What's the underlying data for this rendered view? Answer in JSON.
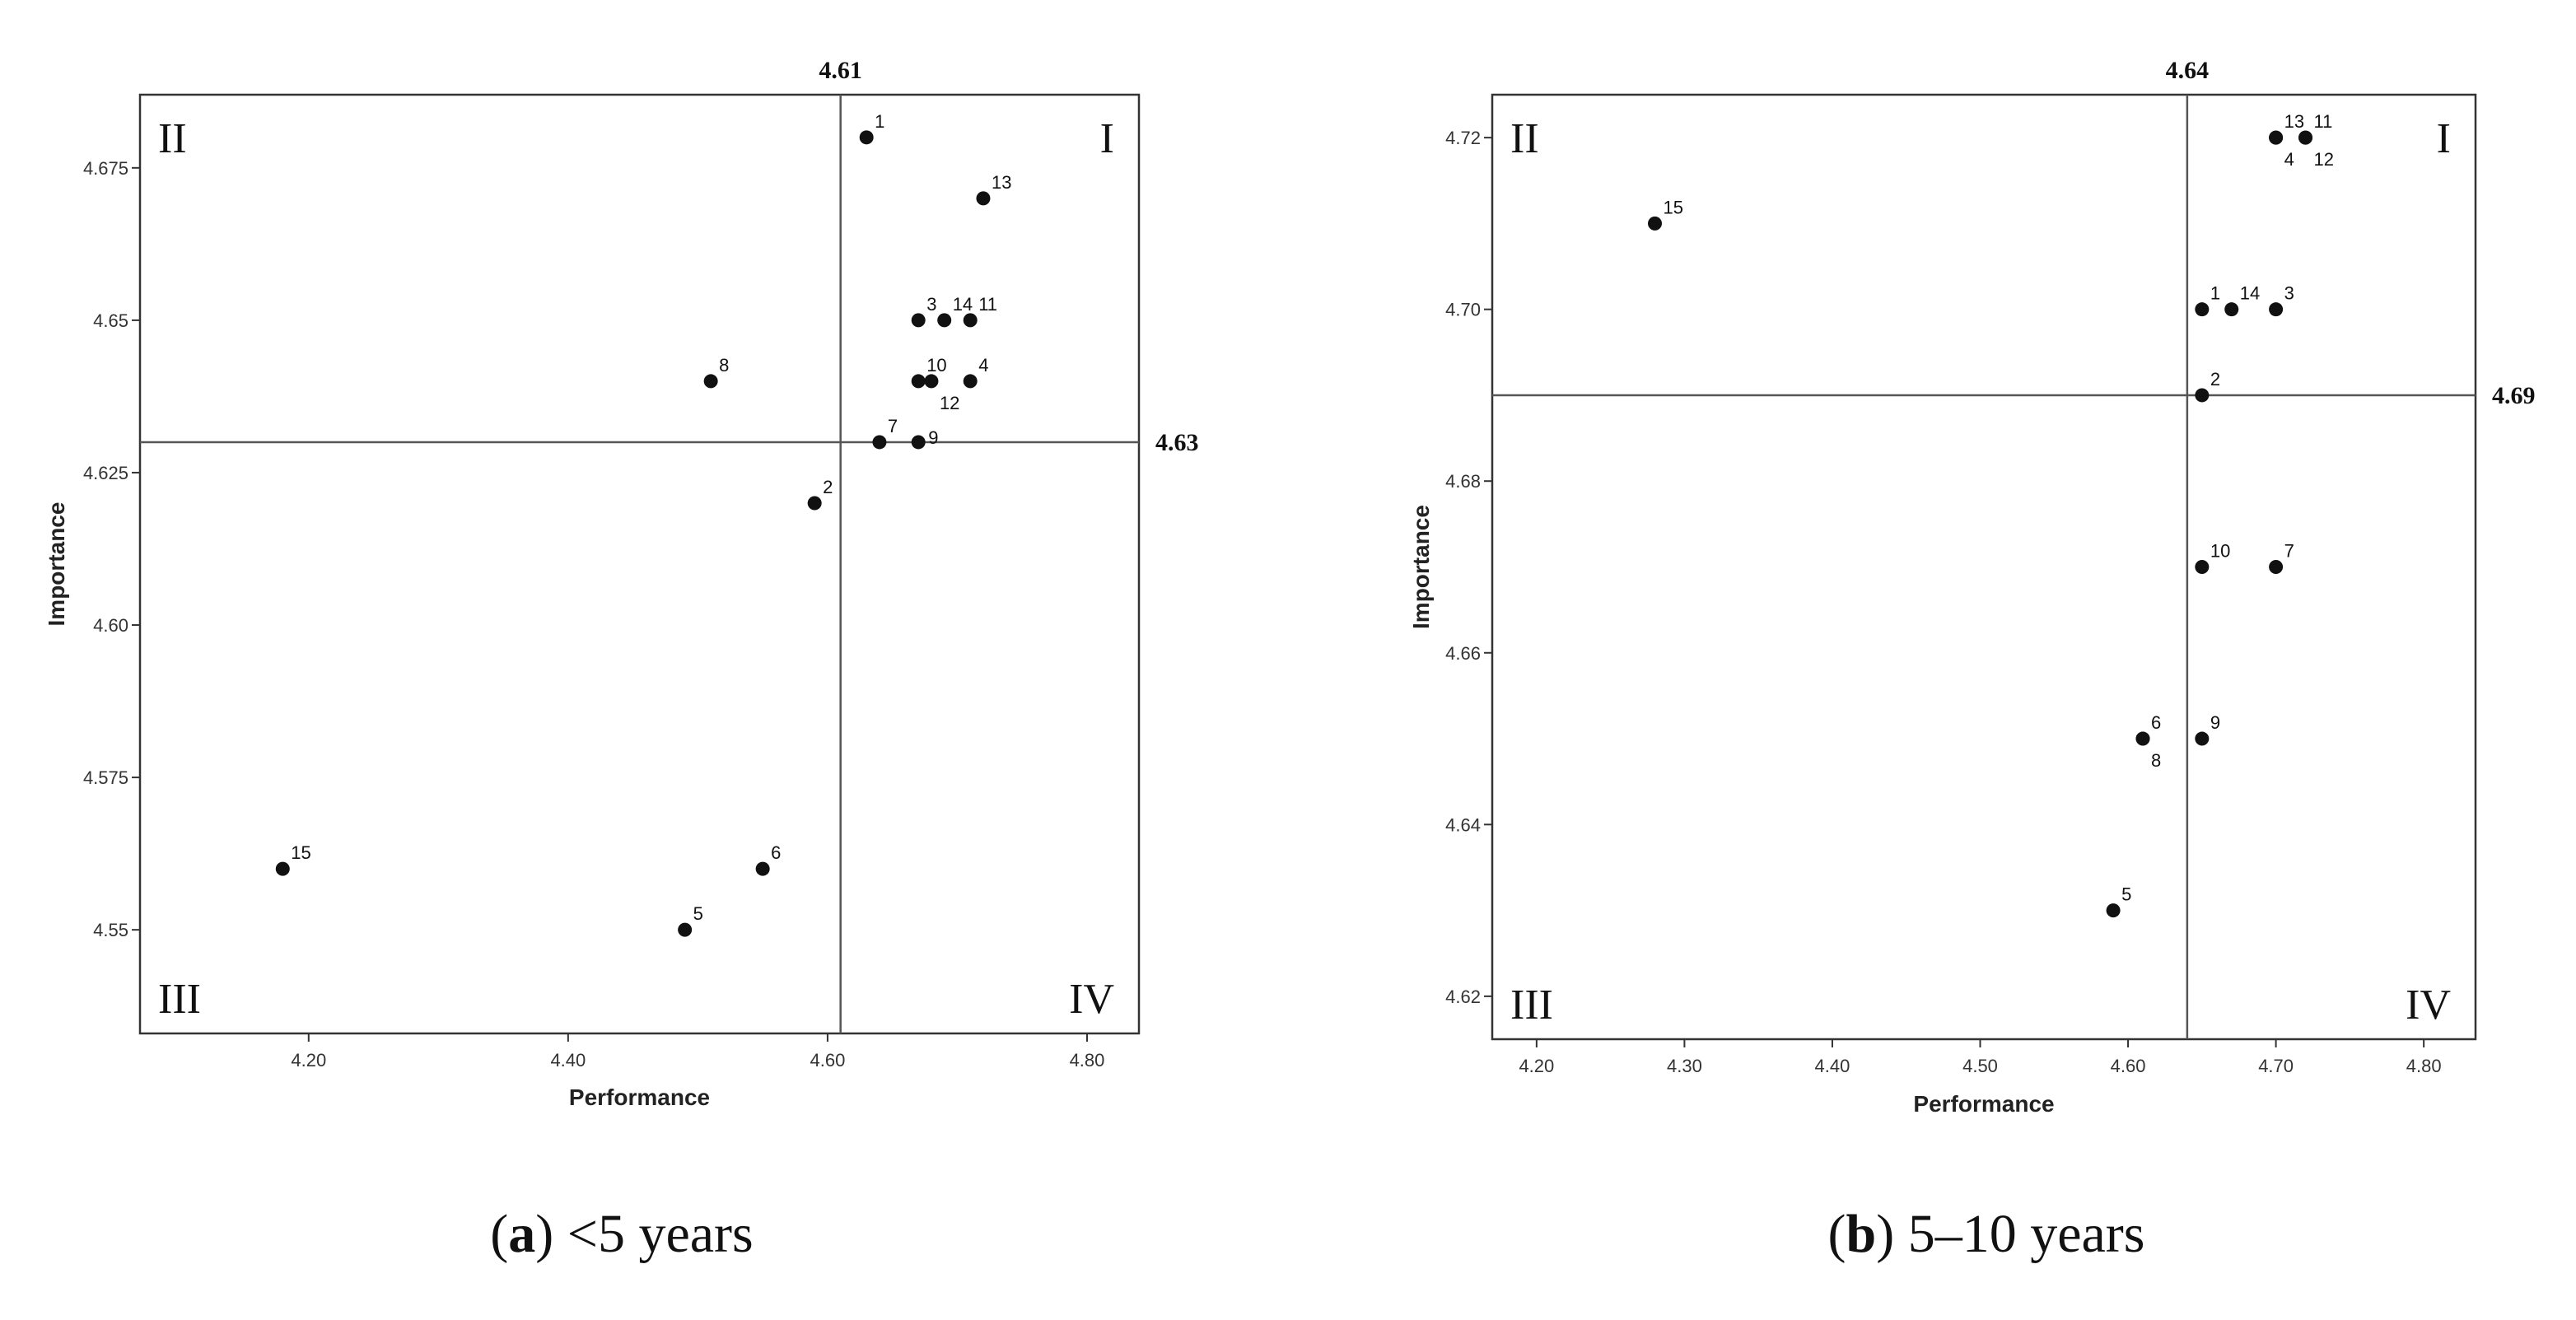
{
  "chart_data": [
    {
      "type": "scatter",
      "caption_letter": "a",
      "caption_text": "<5 years",
      "xlabel": "Performance",
      "ylabel": "Importance",
      "xlim": [
        4.07,
        4.84
      ],
      "ylim": [
        4.533,
        4.687
      ],
      "x_ticks": [
        4.2,
        4.4,
        4.6,
        4.8
      ],
      "x_tick_labels": [
        "4.20",
        "4.40",
        "4.60",
        "4.80"
      ],
      "y_ticks": [
        4.55,
        4.575,
        4.6,
        4.625,
        4.65,
        4.675
      ],
      "y_tick_labels": [
        "4.55",
        "4.575",
        "4.60",
        "4.625",
        "4.65",
        "4.675"
      ],
      "x_mean": 4.61,
      "x_mean_label": "4.61",
      "y_mean": 4.63,
      "y_mean_label": "4.63",
      "quadrant_labels": {
        "top_left": "II",
        "top_right": "I",
        "bottom_left": "III",
        "bottom_right": "IV"
      },
      "points": [
        {
          "label": "1",
          "x": 4.63,
          "y": 4.68,
          "label_pos": "ur"
        },
        {
          "label": "13",
          "x": 4.72,
          "y": 4.67,
          "label_pos": "ur"
        },
        {
          "label": "3",
          "x": 4.67,
          "y": 4.65,
          "label_pos": "ur"
        },
        {
          "label": "14",
          "x": 4.69,
          "y": 4.65,
          "label_pos": "ur"
        },
        {
          "label": "11",
          "x": 4.71,
          "y": 4.65,
          "label_pos": "ur"
        },
        {
          "label": "10",
          "x": 4.67,
          "y": 4.64,
          "label_pos": "ur"
        },
        {
          "label": "12",
          "x": 4.68,
          "y": 4.64,
          "label_pos": "br"
        },
        {
          "label": "4",
          "x": 4.71,
          "y": 4.64,
          "label_pos": "ur"
        },
        {
          "label": "8",
          "x": 4.51,
          "y": 4.64,
          "label_pos": "ur"
        },
        {
          "label": "7",
          "x": 4.64,
          "y": 4.63,
          "label_pos": "ur"
        },
        {
          "label": "9",
          "x": 4.67,
          "y": 4.63,
          "label_pos": "r"
        },
        {
          "label": "2",
          "x": 4.59,
          "y": 4.62,
          "label_pos": "ur"
        },
        {
          "label": "15",
          "x": 4.18,
          "y": 4.56,
          "label_pos": "ur"
        },
        {
          "label": "6",
          "x": 4.55,
          "y": 4.56,
          "label_pos": "ur"
        },
        {
          "label": "5",
          "x": 4.49,
          "y": 4.55,
          "label_pos": "ur"
        }
      ]
    },
    {
      "type": "scatter",
      "caption_letter": "b",
      "caption_text": "5–10 years",
      "xlabel": "Performance",
      "ylabel": "Importance",
      "xlim": [
        4.17,
        4.835
      ],
      "ylim": [
        4.615,
        4.725
      ],
      "x_ticks": [
        4.2,
        4.3,
        4.4,
        4.5,
        4.6,
        4.7,
        4.8
      ],
      "x_tick_labels": [
        "4.20",
        "4.30",
        "4.40",
        "4.50",
        "4.60",
        "4.70",
        "4.80"
      ],
      "y_ticks": [
        4.62,
        4.64,
        4.66,
        4.68,
        4.7,
        4.72
      ],
      "y_tick_labels": [
        "4.62",
        "4.64",
        "4.66",
        "4.68",
        "4.70",
        "4.72"
      ],
      "x_mean": 4.64,
      "x_mean_label": "4.64",
      "y_mean": 4.69,
      "y_mean_label": "4.69",
      "quadrant_labels": {
        "top_left": "II",
        "top_right": "I",
        "bottom_left": "III",
        "bottom_right": "IV"
      },
      "points": [
        {
          "label": "13",
          "x": 4.7,
          "y": 4.72,
          "label_pos": "ur"
        },
        {
          "label": "4",
          "x": 4.7,
          "y": 4.72,
          "label_pos": "br"
        },
        {
          "label": "11",
          "x": 4.72,
          "y": 4.72,
          "label_pos": "ur"
        },
        {
          "label": "12",
          "x": 4.72,
          "y": 4.72,
          "label_pos": "br"
        },
        {
          "label": "15",
          "x": 4.28,
          "y": 4.71,
          "label_pos": "ur"
        },
        {
          "label": "1",
          "x": 4.65,
          "y": 4.7,
          "label_pos": "ur"
        },
        {
          "label": "14",
          "x": 4.67,
          "y": 4.7,
          "label_pos": "ur"
        },
        {
          "label": "3",
          "x": 4.7,
          "y": 4.7,
          "label_pos": "ur"
        },
        {
          "label": "2",
          "x": 4.65,
          "y": 4.69,
          "label_pos": "ur"
        },
        {
          "label": "10",
          "x": 4.65,
          "y": 4.67,
          "label_pos": "ur"
        },
        {
          "label": "7",
          "x": 4.7,
          "y": 4.67,
          "label_pos": "ur"
        },
        {
          "label": "6",
          "x": 4.61,
          "y": 4.65,
          "label_pos": "ur"
        },
        {
          "label": "8",
          "x": 4.61,
          "y": 4.65,
          "label_pos": "br"
        },
        {
          "label": "9",
          "x": 4.65,
          "y": 4.65,
          "label_pos": "ur"
        },
        {
          "label": "5",
          "x": 4.59,
          "y": 4.63,
          "label_pos": "ur"
        }
      ]
    }
  ]
}
